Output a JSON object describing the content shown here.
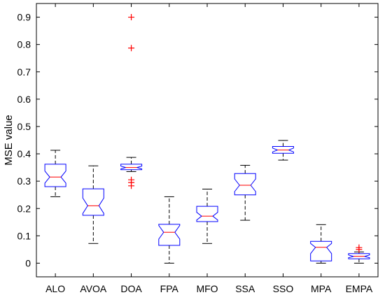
{
  "chart_data": {
    "type": "boxplot",
    "title": "",
    "xlabel": "",
    "ylabel": "MSE value",
    "ylim": [
      -0.05,
      0.95
    ],
    "yticks": [
      0,
      0.1,
      0.2,
      0.3,
      0.4,
      0.5,
      0.6,
      0.7,
      0.8,
      0.9
    ],
    "ytick_labels": [
      "0",
      "0.1",
      "0.2",
      "0.3",
      "0.4",
      "0.5",
      "0.6",
      "0.7",
      "0.8",
      "0.9"
    ],
    "grid": false,
    "notched": true,
    "categories": [
      "ALO",
      "AVOA",
      "DOA",
      "FPA",
      "MFO",
      "SSA",
      "SSO",
      "MPA",
      "EMPA"
    ],
    "boxes": [
      {
        "category": "ALO",
        "whisker_low": 0.243,
        "q1": 0.28,
        "median": 0.315,
        "q3": 0.362,
        "whisker_high": 0.413,
        "notch_low": 0.293,
        "notch_high": 0.337,
        "outliers": []
      },
      {
        "category": "AVOA",
        "whisker_low": 0.072,
        "q1": 0.175,
        "median": 0.21,
        "q3": 0.272,
        "whisker_high": 0.356,
        "notch_low": 0.182,
        "notch_high": 0.238,
        "outliers": []
      },
      {
        "category": "DOA",
        "whisker_low": 0.335,
        "q1": 0.342,
        "median": 0.35,
        "q3": 0.362,
        "whisker_high": 0.387,
        "notch_low": 0.345,
        "notch_high": 0.355,
        "outliers": [
          0.9,
          0.787,
          0.305,
          0.295,
          0.283
        ]
      },
      {
        "category": "FPA",
        "whisker_low": 0.0,
        "q1": 0.065,
        "median": 0.113,
        "q3": 0.142,
        "whisker_high": 0.243,
        "notch_low": 0.088,
        "notch_high": 0.138,
        "outliers": []
      },
      {
        "category": "MFO",
        "whisker_low": 0.072,
        "q1": 0.152,
        "median": 0.172,
        "q3": 0.208,
        "whisker_high": 0.271,
        "notch_low": 0.158,
        "notch_high": 0.186,
        "outliers": []
      },
      {
        "category": "SSA",
        "whisker_low": 0.157,
        "q1": 0.25,
        "median": 0.285,
        "q3": 0.328,
        "whisker_high": 0.358,
        "notch_low": 0.262,
        "notch_high": 0.308,
        "outliers": []
      },
      {
        "category": "SSO",
        "whisker_low": 0.377,
        "q1": 0.402,
        "median": 0.414,
        "q3": 0.427,
        "whisker_high": 0.449,
        "notch_low": 0.407,
        "notch_high": 0.421,
        "outliers": []
      },
      {
        "category": "MPA",
        "whisker_low": 0.0,
        "q1": 0.008,
        "median": 0.058,
        "q3": 0.08,
        "whisker_high": 0.141,
        "notch_low": 0.035,
        "notch_high": 0.072,
        "outliers": []
      },
      {
        "category": "EMPA",
        "whisker_low": 0.0,
        "q1": 0.016,
        "median": 0.025,
        "q3": 0.035,
        "whisker_high": 0.041,
        "notch_low": 0.02,
        "notch_high": 0.03,
        "outliers": [
          0.057,
          0.05
        ]
      }
    ],
    "colors": {
      "box": "#0000ff",
      "median": "#ff0000",
      "whisker": "#000000",
      "outlier": "#ff0000",
      "axis": "#000000"
    }
  }
}
